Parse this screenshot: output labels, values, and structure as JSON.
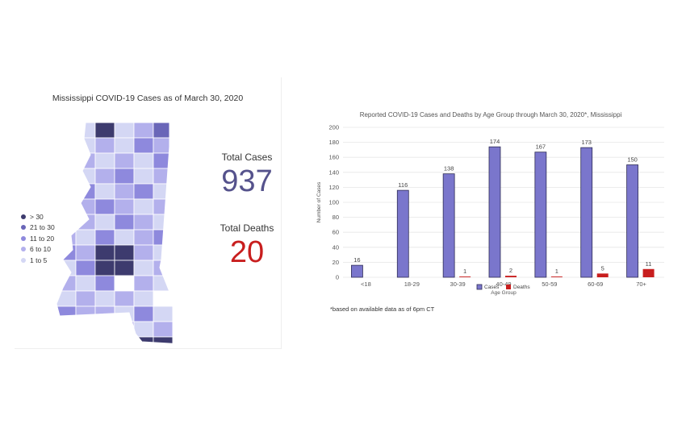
{
  "map_panel": {
    "title": "Mississippi COVID-19 Cases as of March 30, 2020",
    "legend": [
      {
        "label": "> 30",
        "color": "#3d3b6e"
      },
      {
        "label": "21 to 30",
        "color": "#6a66b8"
      },
      {
        "label": "11 to 20",
        "color": "#8e89dd"
      },
      {
        "label": "6 to 10",
        "color": "#b3b0ec"
      },
      {
        "label": "1 to 5",
        "color": "#d4d7f4"
      }
    ],
    "total_cases_label": "Total Cases",
    "total_cases_value": "937",
    "total_cases_color": "#55528c",
    "total_deaths_label": "Total Deaths",
    "total_deaths_value": "20",
    "total_deaths_color": "#c81e1e"
  },
  "chart_data": {
    "type": "bar",
    "title": "Reported COVID-19 Cases and Deaths by Age Group through March 30, 2020*, Mississippi",
    "xlabel": "Age Group",
    "ylabel": "Number of Cases",
    "categories": [
      "<18",
      "18-29",
      "30-39",
      "40-49",
      "50-59",
      "60-69",
      "70+"
    ],
    "series": [
      {
        "name": "Cases",
        "values": [
          16,
          116,
          138,
          174,
          167,
          173,
          150
        ],
        "color": "#7a76cc"
      },
      {
        "name": "Deaths",
        "values": [
          0,
          0,
          1,
          2,
          1,
          5,
          11
        ],
        "color": "#c81e1e"
      }
    ],
    "data_labels": {
      "Cases": [
        "16",
        "116",
        "138",
        "174",
        "167",
        "173",
        "150"
      ],
      "Deaths": [
        "",
        "",
        "1",
        "2",
        "1",
        "5",
        "11"
      ]
    },
    "ylim": [
      0,
      200
    ],
    "yticks": [
      0,
      20,
      40,
      60,
      80,
      100,
      120,
      140,
      160,
      180,
      200
    ],
    "grid": true,
    "legend_position": "bottom",
    "footnote": "*based on available data as of 6pm CT"
  }
}
